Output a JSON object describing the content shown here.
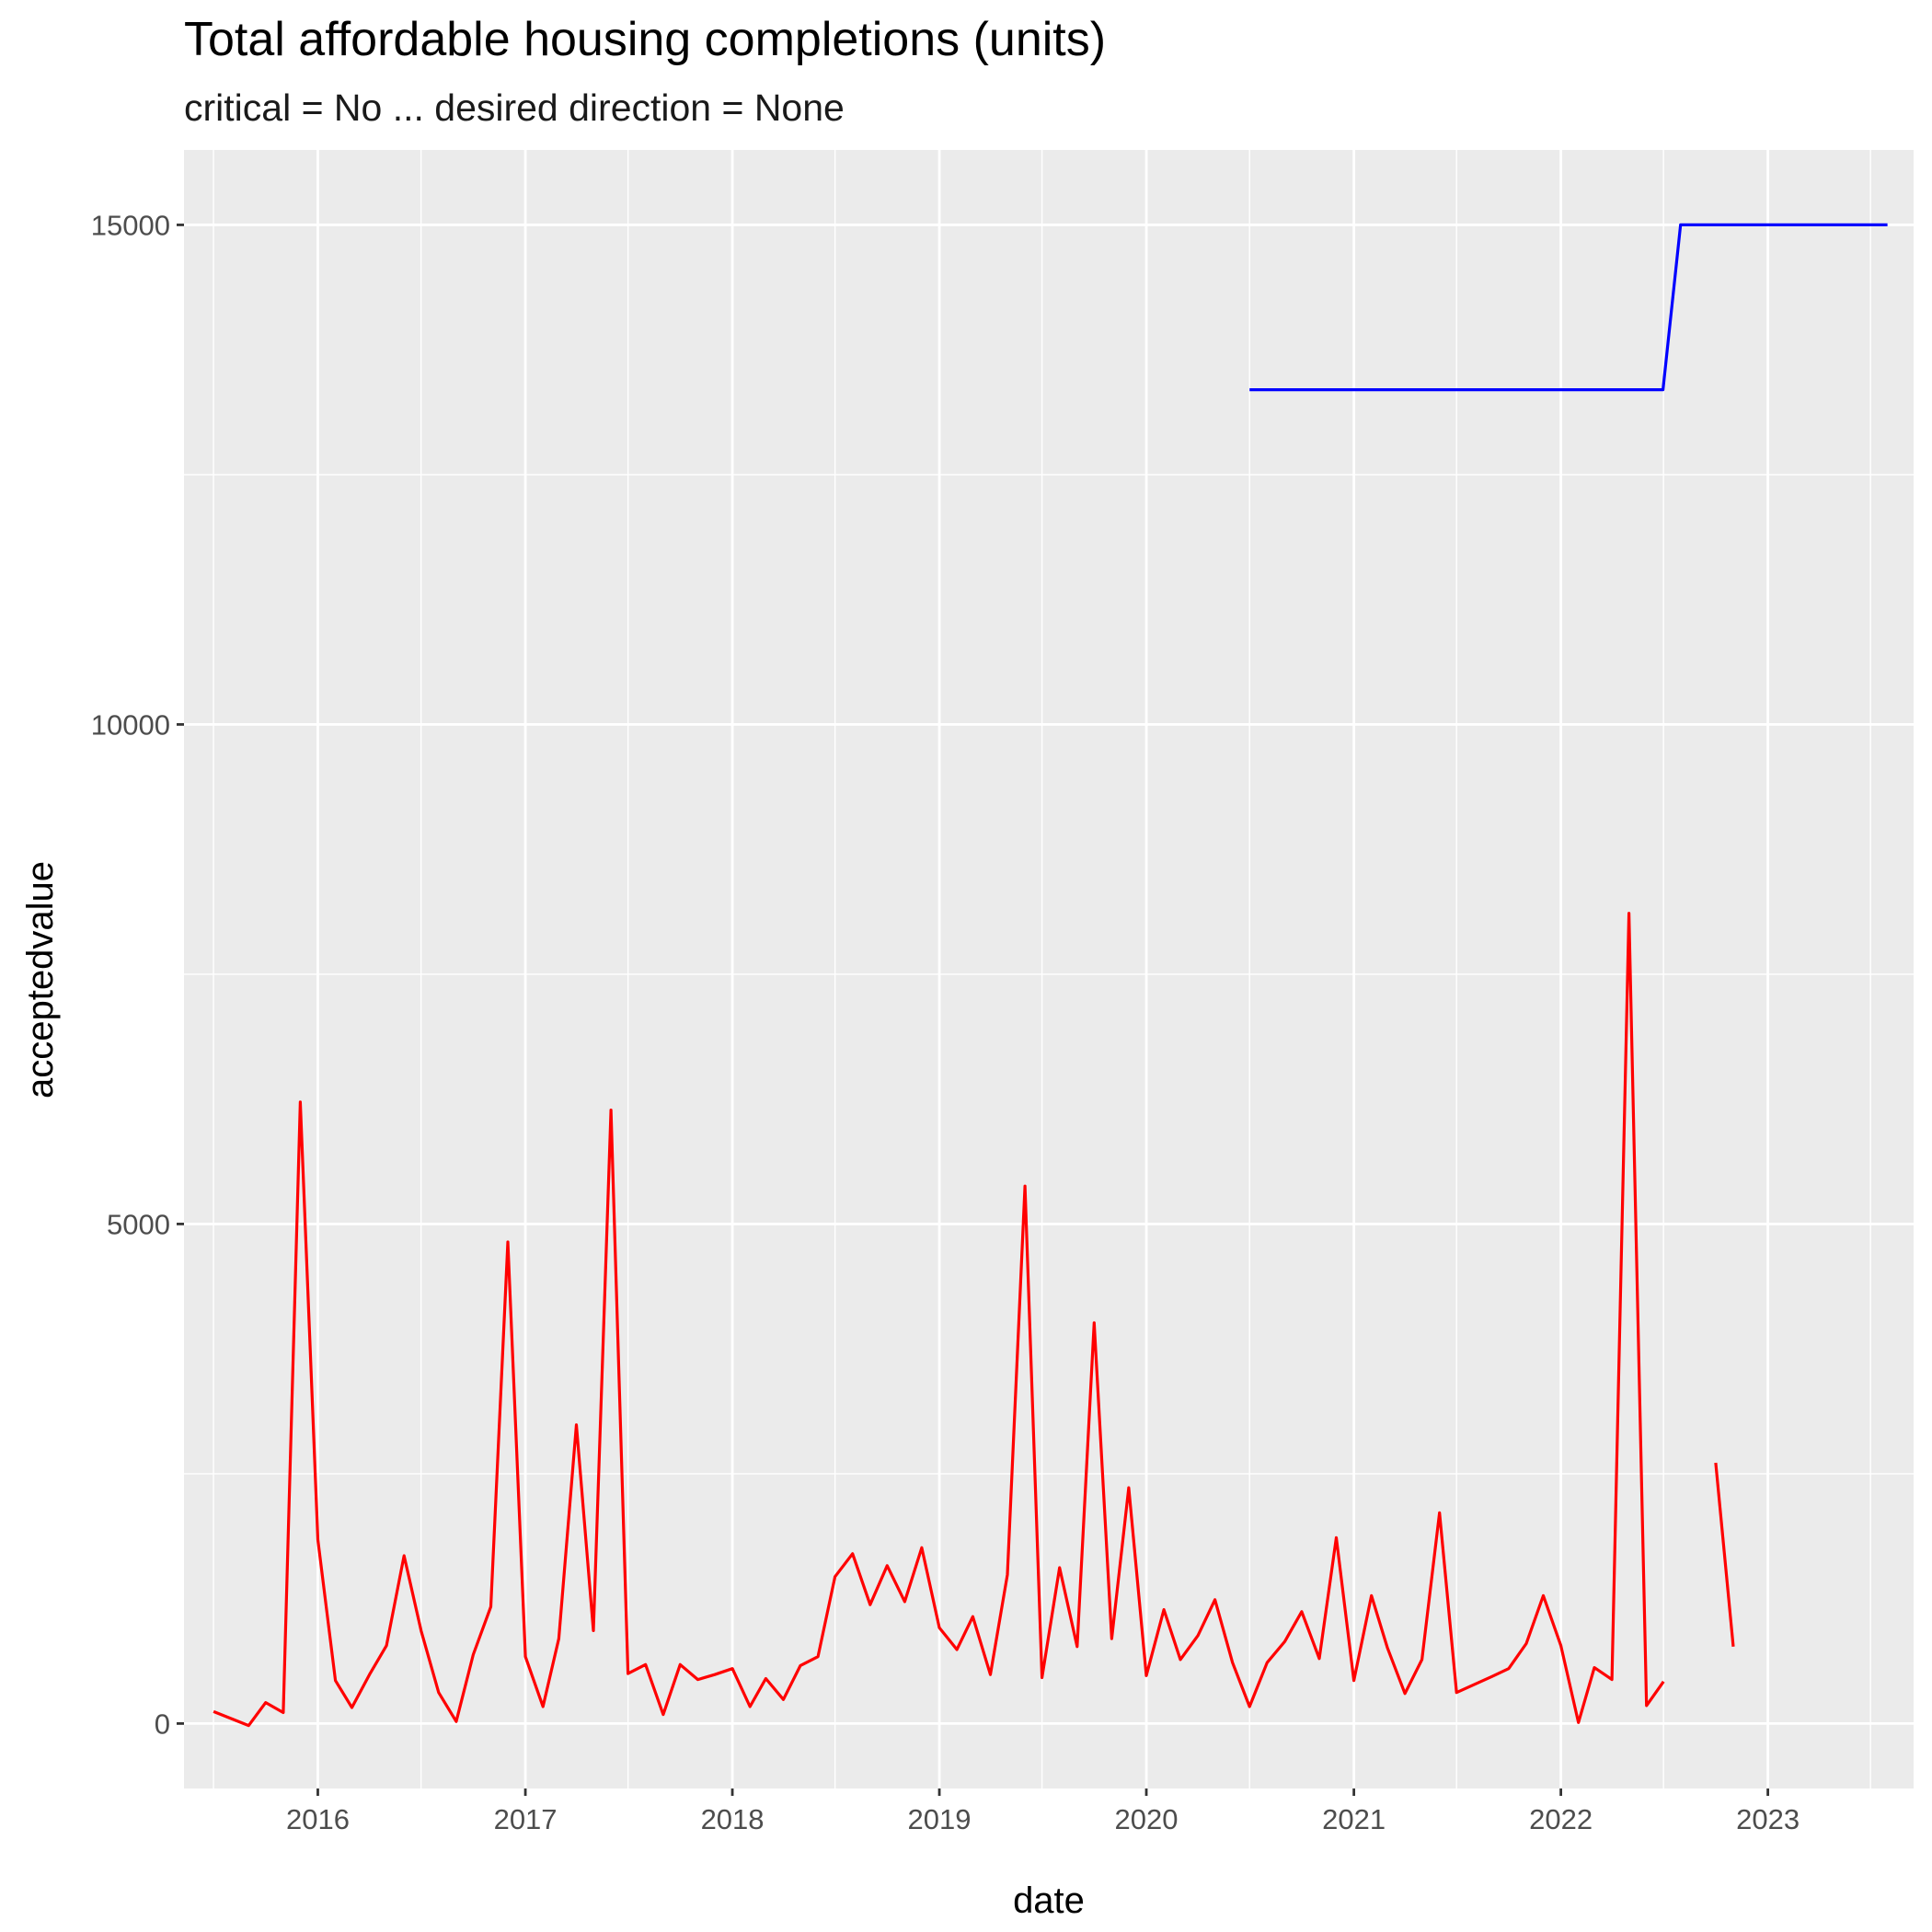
{
  "chart_data": {
    "type": "line",
    "title": "Total affordable housing completions (units)",
    "subtitle": "critical = No ... desired direction = None",
    "xlabel": "date",
    "ylabel": "acceptedvalue",
    "xlim": [
      "2015-05-10",
      "2023-09-15"
    ],
    "ylim": [
      -650,
      15750
    ],
    "x_ticks": [
      "2016",
      "2017",
      "2018",
      "2019",
      "2020",
      "2021",
      "2022",
      "2023"
    ],
    "y_ticks": [
      0,
      5000,
      10000,
      15000
    ],
    "grid": true,
    "legend": "none",
    "colors": {
      "panel": "#ebebeb",
      "grid": "#ffffff",
      "text": "#4d4d4d"
    },
    "series": [
      {
        "color": "#ff0000",
        "segments": [
          [
            [
              "2015-07-01",
              120
            ],
            [
              "2015-08-01",
              50
            ],
            [
              "2015-09-01",
              -20
            ],
            [
              "2015-10-01",
              210
            ],
            [
              "2015-11-01",
              110
            ],
            [
              "2015-12-01",
              6220
            ],
            [
              "2016-01-01",
              1840
            ],
            [
              "2016-02-01",
              430
            ],
            [
              "2016-03-01",
              160
            ],
            [
              "2016-04-01",
              490
            ],
            [
              "2016-05-01",
              780
            ],
            [
              "2016-06-01",
              1680
            ],
            [
              "2016-07-01",
              930
            ],
            [
              "2016-08-01",
              310
            ],
            [
              "2016-09-01",
              20
            ],
            [
              "2016-10-01",
              690
            ],
            [
              "2016-11-01",
              1170
            ],
            [
              "2016-12-01",
              4820
            ],
            [
              "2017-01-01",
              670
            ],
            [
              "2017-02-01",
              170
            ],
            [
              "2017-03-01",
              850
            ],
            [
              "2017-04-01",
              2990
            ],
            [
              "2017-05-01",
              930
            ],
            [
              "2017-06-01",
              6140
            ],
            [
              "2017-07-01",
              500
            ],
            [
              "2017-08-01",
              590
            ],
            [
              "2017-09-01",
              90
            ],
            [
              "2017-10-01",
              590
            ],
            [
              "2017-11-01",
              440
            ],
            [
              "2017-12-01",
              490
            ],
            [
              "2018-01-01",
              550
            ],
            [
              "2018-02-01",
              170
            ],
            [
              "2018-03-01",
              450
            ],
            [
              "2018-04-01",
              240
            ],
            [
              "2018-05-01",
              580
            ],
            [
              "2018-06-01",
              670
            ],
            [
              "2018-07-01",
              1470
            ],
            [
              "2018-08-01",
              1700
            ],
            [
              "2018-09-01",
              1190
            ],
            [
              "2018-10-01",
              1580
            ],
            [
              "2018-11-01",
              1220
            ],
            [
              "2018-12-01",
              1760
            ],
            [
              "2019-01-01",
              960
            ],
            [
              "2019-02-01",
              740
            ],
            [
              "2019-03-01",
              1070
            ],
            [
              "2019-04-01",
              490
            ],
            [
              "2019-05-01",
              1490
            ],
            [
              "2019-06-01",
              5380
            ],
            [
              "2019-07-01",
              460
            ],
            [
              "2019-08-01",
              1560
            ],
            [
              "2019-09-01",
              770
            ],
            [
              "2019-10-01",
              4010
            ],
            [
              "2019-11-01",
              850
            ],
            [
              "2019-12-01",
              2360
            ],
            [
              "2020-01-01",
              480
            ],
            [
              "2020-02-01",
              1140
            ],
            [
              "2020-03-01",
              640
            ],
            [
              "2020-04-01",
              880
            ],
            [
              "2020-05-01",
              1240
            ],
            [
              "2020-06-01",
              610
            ],
            [
              "2020-07-01",
              170
            ],
            [
              "2020-08-01",
              610
            ],
            [
              "2020-09-01",
              820
            ],
            [
              "2020-10-01",
              1120
            ],
            [
              "2020-11-01",
              650
            ],
            [
              "2020-12-01",
              1860
            ],
            [
              "2021-01-01",
              430
            ],
            [
              "2021-02-01",
              1280
            ],
            [
              "2021-03-01",
              760
            ],
            [
              "2021-04-01",
              300
            ],
            [
              "2021-05-01",
              640
            ],
            [
              "2021-06-01",
              2110
            ],
            [
              "2021-07-01",
              310
            ],
            [
              "2021-08-01",
              390
            ],
            [
              "2021-09-01",
              470
            ],
            [
              "2021-10-01",
              550
            ],
            [
              "2021-11-01",
              800
            ],
            [
              "2021-12-01",
              1280
            ],
            [
              "2022-01-01",
              780
            ],
            [
              "2022-02-01",
              10
            ],
            [
              "2022-03-01",
              560
            ],
            [
              "2022-04-01",
              440
            ],
            [
              "2022-05-01",
              8110
            ],
            [
              "2022-06-01",
              180
            ],
            [
              "2022-07-01",
              420
            ]
          ],
          [
            [
              "2022-10-01",
              2610
            ],
            [
              "2022-11-01",
              770
            ]
          ]
        ]
      },
      {
        "color": "#0000ff",
        "segments": [
          [
            [
              "2020-07-01",
              13350
            ],
            [
              "2022-06-30",
              13350
            ],
            [
              "2022-07-31",
              15000
            ],
            [
              "2023-07-31",
              15000
            ]
          ]
        ]
      }
    ]
  }
}
